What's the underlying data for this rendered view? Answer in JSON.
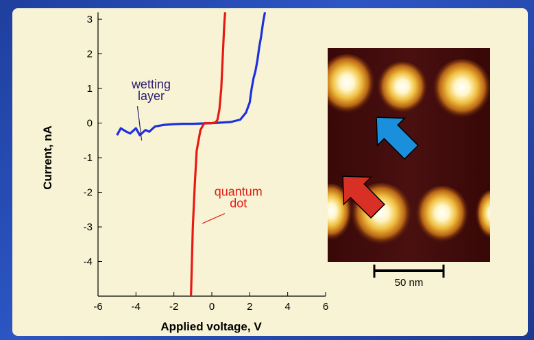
{
  "colors": {
    "panel": "#f7f3d4",
    "background": "#2c56c4",
    "qd_curve": "#e61a14",
    "wl_curve": "#1f2fe0",
    "wl_annotation": "#2a2070",
    "qd_annotation": "#e61a14",
    "blue_arrow": "#1a8fdc",
    "red_arrow": "#d83024"
  },
  "chart_data": {
    "type": "line",
    "xlabel": "Applied voltage, V",
    "ylabel": "Current, nA",
    "xlim": [
      -6,
      6
    ],
    "ylim": [
      -5,
      3.2
    ],
    "x_ticks": [
      "-6",
      "-4",
      "-2",
      "0",
      "2",
      "4",
      "6"
    ],
    "y_ticks": [
      "3",
      "2",
      "1",
      "0",
      "-1",
      "-2",
      "-3",
      "-4"
    ],
    "grid": false,
    "series": [
      {
        "name": "wetting layer",
        "color": "#1f2fe0",
        "x": [
          -5.0,
          -4.8,
          -4.5,
          -4.3,
          -4.0,
          -3.8,
          -3.5,
          -3.3,
          -3.0,
          -2.5,
          -2.0,
          -1.5,
          -1.0,
          0.0,
          1.0,
          1.5,
          1.8,
          2.0,
          2.1,
          2.2,
          2.3,
          2.4,
          2.5,
          2.6,
          2.7,
          2.8
        ],
        "y": [
          -0.35,
          -0.15,
          -0.25,
          -0.3,
          -0.15,
          -0.35,
          -0.2,
          -0.25,
          -0.1,
          -0.05,
          -0.03,
          -0.02,
          -0.02,
          0.0,
          0.03,
          0.1,
          0.3,
          0.6,
          1.0,
          1.3,
          1.5,
          1.8,
          2.2,
          2.5,
          2.9,
          3.2
        ]
      },
      {
        "name": "quantum dot",
        "color": "#e61a14",
        "x": [
          -1.1,
          -1.0,
          -0.9,
          -0.8,
          -0.6,
          -0.4,
          -0.2,
          0.0,
          0.2,
          0.3,
          0.4,
          0.5,
          0.55,
          0.6,
          0.65,
          0.7
        ],
        "y": [
          -5.0,
          -3.0,
          -1.8,
          -0.8,
          -0.2,
          0.0,
          0.0,
          0.0,
          0.02,
          0.1,
          0.4,
          1.0,
          1.6,
          2.2,
          2.8,
          3.2
        ]
      }
    ],
    "annotations": [
      {
        "text_lines": [
          "wetting",
          "layer"
        ],
        "color": "#2a2070",
        "x": -3.2,
        "y": 1.0,
        "pointer_to": [
          -3.7,
          -0.5
        ]
      },
      {
        "text_lines": [
          "quantum",
          "dot"
        ],
        "color": "#e61a14",
        "x": 1.4,
        "y": -2.1,
        "pointer_to": [
          -0.5,
          -2.9
        ]
      }
    ]
  },
  "image_inset": {
    "scale_bar_label": "50 nm"
  }
}
